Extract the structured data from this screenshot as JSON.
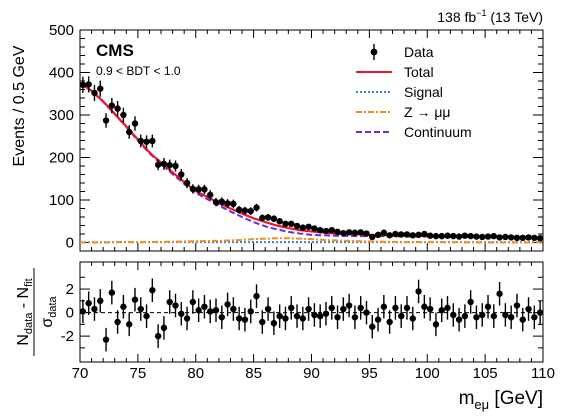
{
  "chart_data": {
    "type": "scatter",
    "lumi": {
      "value": "138 fb",
      "exp": "−1",
      "energy": " (13 TeV)"
    },
    "experiment": "CMS",
    "category": "0.9 < BDT < 1.0",
    "xlabel": {
      "main": "m",
      "sub": "eμ",
      "unit": " [GeV]"
    },
    "xlim": [
      70,
      110
    ],
    "x_ticks": [
      70,
      75,
      80,
      85,
      90,
      95,
      100,
      105,
      110
    ],
    "top": {
      "ylabel": "Events / 0.5 GeV",
      "ylim": [
        -20,
        500
      ],
      "y_ticks": [
        0,
        100,
        200,
        300,
        400,
        500
      ]
    },
    "bottom": {
      "ylabel": {
        "n1": "N",
        "n1sub": "data",
        "mid": " - N",
        "n2sub": "fit",
        "den": "σ",
        "densub": "data"
      },
      "ylim": [
        -4.2,
        4.3
      ],
      "y_ticks": [
        -2,
        0,
        2
      ]
    },
    "legend": [
      {
        "label": "Data",
        "style": "marker",
        "color": "#000000"
      },
      {
        "label": "Total",
        "style": "solid",
        "color": "#e8192c"
      },
      {
        "label": "Signal",
        "style": "dotted",
        "color": "#3f7bd6"
      },
      {
        "label": "Z → μμ",
        "style": "dashdot",
        "color": "#f28e1c"
      },
      {
        "label": "Continuum",
        "style": "dashed",
        "color": "#6a2ae0"
      }
    ],
    "series": [
      {
        "name": "Data",
        "x": [
          70.25,
          70.75,
          71.25,
          71.75,
          72.25,
          72.75,
          73.25,
          73.75,
          74.25,
          74.75,
          75.25,
          75.75,
          76.25,
          76.75,
          77.25,
          77.75,
          78.25,
          78.75,
          79.25,
          79.75,
          80.25,
          80.75,
          81.25,
          81.75,
          82.25,
          82.75,
          83.25,
          83.75,
          84.25,
          84.75,
          85.25,
          85.75,
          86.25,
          86.75,
          87.25,
          87.75,
          88.25,
          88.75,
          89.25,
          89.75,
          90.25,
          90.75,
          91.25,
          91.75,
          92.25,
          92.75,
          93.25,
          93.75,
          94.25,
          94.75,
          95.25,
          95.75,
          96.25,
          96.75,
          97.25,
          97.75,
          98.25,
          98.75,
          99.25,
          99.75,
          100.25,
          100.75,
          101.25,
          101.75,
          102.25,
          102.75,
          103.25,
          103.75,
          104.25,
          104.75,
          105.25,
          105.75,
          106.25,
          106.75,
          107.25,
          107.75,
          108.25,
          108.75,
          109.25,
          109.75
        ],
        "y": [
          371,
          372,
          352,
          362,
          287,
          322,
          315,
          300,
          260,
          280,
          239,
          237,
          239,
          183,
          185,
          182,
          180,
          160,
          140,
          126,
          125,
          125,
          112,
          95,
          96,
          92,
          91,
          77,
          75,
          74,
          82,
          58,
          59,
          56,
          50,
          44,
          44,
          39,
          35,
          37,
          33,
          29,
          27,
          29,
          25,
          22,
          24,
          23,
          24,
          21,
          13,
          18,
          23,
          17,
          20,
          19,
          19,
          17,
          18,
          20,
          16,
          15,
          15,
          16,
          15,
          14,
          16,
          15,
          14,
          13,
          14,
          15,
          12,
          13,
          12,
          11,
          11,
          12,
          11,
          10
        ],
        "yerr": [
          19,
          19,
          19,
          19,
          17,
          18,
          18,
          17,
          16,
          17,
          15,
          15,
          15,
          13,
          14,
          13,
          13,
          13,
          12,
          11,
          11,
          11,
          11,
          10,
          10,
          10,
          10,
          9,
          9,
          9,
          9,
          8,
          8,
          8,
          7,
          7,
          7,
          6,
          6,
          6,
          6,
          5,
          5,
          5,
          5,
          5,
          5,
          5,
          5,
          5,
          4,
          4,
          5,
          4,
          4,
          4,
          4,
          4,
          4,
          4,
          4,
          4,
          4,
          4,
          4,
          4,
          4,
          4,
          4,
          4,
          4,
          4,
          3,
          4,
          3,
          3,
          3,
          3,
          3,
          3
        ]
      },
      {
        "name": "Total",
        "x": [
          70,
          71,
          72,
          73,
          74,
          75,
          76,
          77,
          78,
          79,
          80,
          81,
          82,
          83,
          84,
          85,
          86,
          87,
          88,
          89,
          90,
          92,
          94,
          96,
          98,
          100,
          102,
          104,
          106,
          108,
          110
        ],
        "y": [
          375,
          357,
          332,
          303,
          273,
          242,
          212,
          188,
          165,
          142,
          121,
          107,
          93,
          80,
          68,
          57,
          48,
          40,
          34,
          29,
          26,
          21,
          19,
          17,
          16,
          15,
          14,
          13,
          13,
          12,
          11
        ]
      },
      {
        "name": "Signal",
        "x": [
          70,
          75,
          80,
          85,
          90,
          95,
          100,
          105,
          110
        ],
        "y": [
          1,
          1,
          1,
          1,
          1,
          1,
          1,
          1,
          1
        ]
      },
      {
        "name": "Z → μμ",
        "x": [
          70,
          72,
          74,
          76,
          78,
          80,
          82,
          84,
          85,
          86,
          87,
          88,
          89,
          90,
          91,
          92,
          94,
          96,
          98,
          100,
          105,
          110
        ],
        "y": [
          0,
          0,
          1,
          1,
          2,
          3,
          4,
          6,
          8,
          9,
          10,
          10,
          9,
          8,
          6,
          5,
          3,
          2,
          1,
          1,
          0,
          0
        ]
      },
      {
        "name": "Continuum",
        "x": [
          70,
          71,
          72,
          73,
          74,
          75,
          76,
          77,
          78,
          79,
          80,
          81,
          82,
          83,
          84,
          85,
          86,
          87,
          88,
          89,
          90,
          92,
          94,
          96,
          98,
          100,
          102,
          104,
          106,
          108,
          110
        ],
        "y": [
          375,
          357,
          331,
          302,
          272,
          240,
          210,
          185,
          161,
          138,
          117,
          102,
          87,
          73,
          60,
          48,
          38,
          31,
          25,
          21,
          18,
          16,
          15,
          15,
          14,
          14,
          13,
          13,
          12,
          12,
          11
        ]
      }
    ],
    "pulls": {
      "x": [
        70.25,
        70.75,
        71.25,
        71.75,
        72.25,
        72.75,
        73.25,
        73.75,
        74.25,
        74.75,
        75.25,
        75.75,
        76.25,
        76.75,
        77.25,
        77.75,
        78.25,
        78.75,
        79.25,
        79.75,
        80.25,
        80.75,
        81.25,
        81.75,
        82.25,
        82.75,
        83.25,
        83.75,
        84.25,
        84.75,
        85.25,
        85.75,
        86.25,
        86.75,
        87.25,
        87.75,
        88.25,
        88.75,
        89.25,
        89.75,
        90.25,
        90.75,
        91.25,
        91.75,
        92.25,
        92.75,
        93.25,
        93.75,
        94.25,
        94.75,
        95.25,
        95.75,
        96.25,
        96.75,
        97.25,
        97.75,
        98.25,
        98.75,
        99.25,
        99.75,
        100.25,
        100.75,
        101.25,
        101.75,
        102.25,
        102.75,
        103.25,
        103.75,
        104.25,
        104.75,
        105.25,
        105.75,
        106.25,
        106.75,
        107.25,
        107.75,
        108.25,
        108.75,
        109.25,
        109.75
      ],
      "y": [
        0.1,
        0.8,
        0.3,
        1.0,
        -2.3,
        1.7,
        -0.8,
        0.5,
        -1.0,
        1.1,
        0.3,
        -0.3,
        1.9,
        -2.0,
        -1.3,
        0.9,
        0.6,
        -0.1,
        -0.5,
        0.9,
        0.2,
        0.5,
        0.1,
        0.2,
        -0.4,
        0.7,
        0.3,
        -0.5,
        -0.6,
        0.1,
        1.4,
        -0.8,
        0.3,
        -0.9,
        -0.3,
        -0.5,
        0.4,
        -0.3,
        -0.5,
        0.3,
        -0.2,
        -0.3,
        -0.1,
        0.4,
        -0.4,
        0.3,
        0.6,
        -0.4,
        0.4,
        0.0,
        -1.2,
        -0.6,
        0.5,
        -0.8,
        0.4,
        -0.3,
        0.4,
        -0.5,
        1.8,
        0.5,
        0.3,
        -1.0,
        0.2,
        0.4,
        -0.2,
        -0.6,
        -0.3,
        0.9,
        -0.4,
        -0.2,
        0.5,
        -0.3,
        1.6,
        -0.2,
        -0.4,
        0.6,
        -0.6,
        0.3,
        -0.4,
        0.0
      ]
    }
  }
}
